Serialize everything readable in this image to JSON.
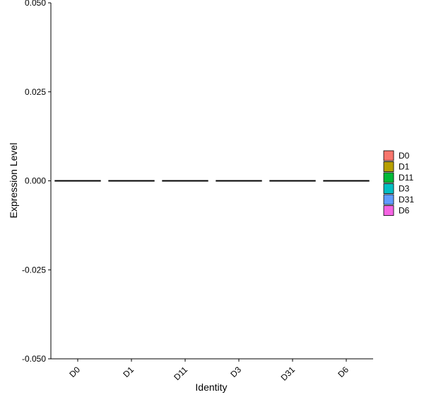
{
  "chart_data": {
    "type": "violin",
    "title": "",
    "xlabel": "Identity",
    "ylabel": "Expression Level",
    "categories": [
      "D0",
      "D1",
      "D11",
      "D3",
      "D31",
      "D6"
    ],
    "values": [
      0,
      0,
      0,
      0,
      0,
      0
    ],
    "ylim": [
      -0.05,
      0.05
    ],
    "yticks": [
      -0.05,
      -0.025,
      0.0,
      0.025,
      0.05
    ],
    "ytick_labels": [
      "-0.050",
      "-0.025",
      "0.000",
      "0.025",
      "0.050"
    ],
    "grid": false,
    "legend": {
      "placement": "right",
      "entries": [
        {
          "label": "D0",
          "color": "#F8766D"
        },
        {
          "label": "D1",
          "color": "#B79F00"
        },
        {
          "label": "D11",
          "color": "#00BA38"
        },
        {
          "label": "D3",
          "color": "#00BFC4"
        },
        {
          "label": "D31",
          "color": "#619CFF"
        },
        {
          "label": "D6",
          "color": "#F564E3"
        }
      ]
    }
  }
}
